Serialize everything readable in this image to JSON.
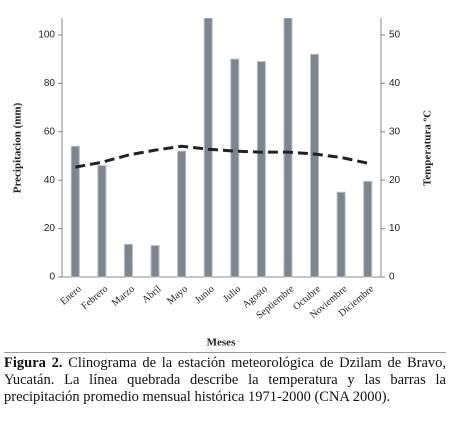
{
  "chart_data": {
    "type": "bar",
    "categories": [
      "Enero",
      "Febrero",
      "Marzo",
      "Abril",
      "Mayo",
      "Junio",
      "Julio",
      "Agosto",
      "Septiembre",
      "Octubre",
      "Noviembre",
      "Diciembre"
    ],
    "series": [
      {
        "name": "Precipitación",
        "color": "#7d858f",
        "values": [
          54,
          46,
          13.5,
          13,
          52,
          107,
          90,
          89,
          107,
          92,
          35,
          39.5
        ]
      },
      {
        "name": "Temperatura",
        "color": "#222222",
        "axis": "y2",
        "type": "line",
        "dashed": true,
        "values": [
          22.7,
          23.7,
          25.2,
          26.2,
          27,
          26.4,
          26,
          25.8,
          25.8,
          25.4,
          24.7,
          23.5
        ]
      }
    ],
    "ylim": [
      0,
      107
    ],
    "yticks": [
      0,
      20,
      40,
      60,
      80,
      100
    ],
    "y2lim": [
      0,
      53.5
    ],
    "y2ticks": [
      0,
      10,
      20,
      30,
      40,
      50
    ],
    "ylabel": "Precipitacion (mm)",
    "y2label": "Temperatura ºC",
    "xlabel": "Meses"
  },
  "caption": {
    "label": "Figura 2.",
    "text": "Clinograma de la estación meteorológica de Dzilam de Bravo, Yucatán. La línea quebrada describe la temperatura y las barras la precipitación promedio mensual histórica 1971-2000 (CNA 2000)."
  }
}
